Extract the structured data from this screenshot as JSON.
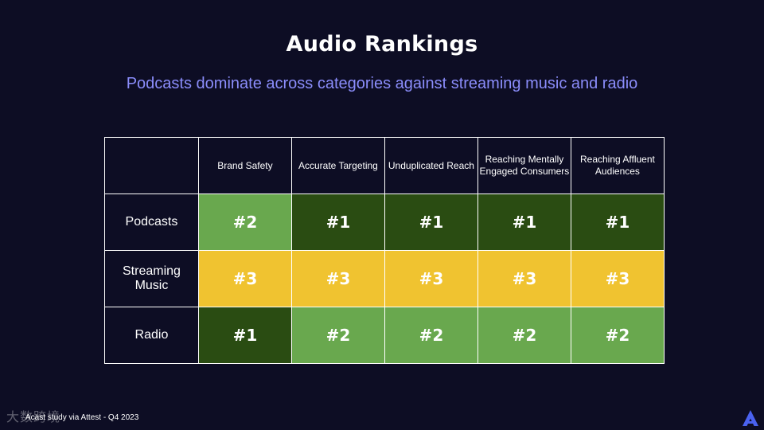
{
  "title": "Audio Rankings",
  "subtitle": "Podcasts dominate across categories against streaming music and radio",
  "table": {
    "columns": [
      "Brand Safety",
      "Accurate Targeting",
      "Unduplicated Reach",
      "Reaching Mentally Engaged Consumers",
      "Reaching Affluent Audiences"
    ],
    "rows": [
      {
        "label": "Podcasts",
        "values": [
          "#2",
          "#1",
          "#1",
          "#1",
          "#1"
        ]
      },
      {
        "label": "Streaming Music",
        "values": [
          "#3",
          "#3",
          "#3",
          "#3",
          "#3"
        ]
      },
      {
        "label": "Radio",
        "values": [
          "#1",
          "#2",
          "#2",
          "#2",
          "#2"
        ]
      }
    ]
  },
  "rank_colors": {
    "#1": "#2a4c12",
    "#2": "#69a84e",
    "#3": "#f0c330"
  },
  "footer": "Acast study via Attest - Q4 2023",
  "watermark": "大数跨境",
  "brand_logo_icon": "acast-logo-icon",
  "colors": {
    "background": "#0d0d24",
    "subtitle": "#8b8dfb",
    "logo": "#4a62f0"
  }
}
